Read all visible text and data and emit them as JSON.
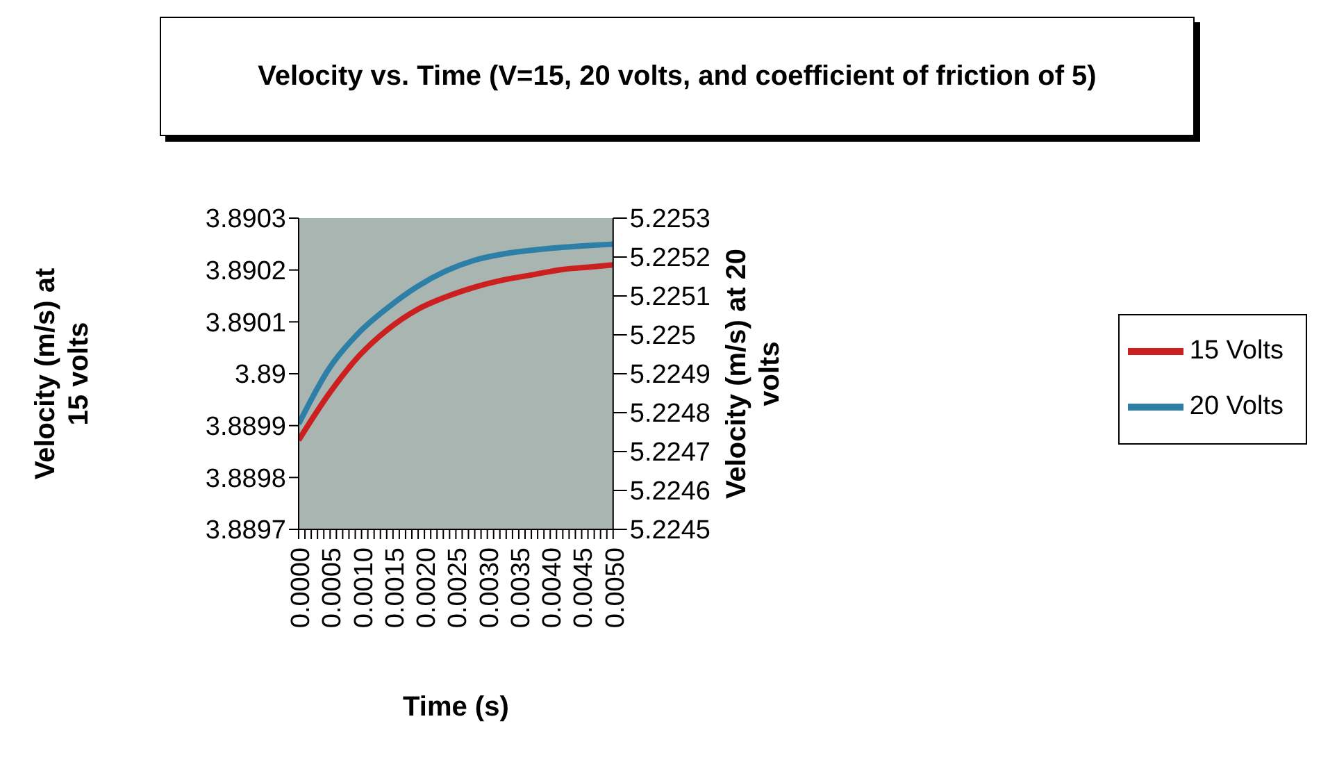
{
  "chart_data": {
    "type": "line",
    "title": "Velocity vs. Time (V=15, 20 volts, and coefficient of friction of 5)",
    "xlabel": "Time (s)",
    "ylabel": "Velocity (m/s)  at 15 volts",
    "y2label": "Velocity (m/s) at 20 volts",
    "x": [
      0,
      0.000486,
      0.000949,
      0.001412,
      0.001875,
      0.002338,
      0.0028,
      0.00326,
      0.00373,
      0.00419,
      0.00465,
      0.005
    ],
    "series": [
      {
        "name": "15 Volts",
        "color": "#cc1f1f",
        "values": [
          3.889872,
          3.889962,
          3.890033,
          3.890085,
          3.890123,
          3.890148,
          3.890167,
          3.890181,
          3.890191,
          3.890201,
          3.890206,
          3.89021
        ]
      },
      {
        "name": "20 Volts",
        "color": "#2e7fa8",
        "axis": "y2",
        "values": [
          5.224771,
          5.224914,
          5.225004,
          5.225069,
          5.225123,
          5.225164,
          5.225192,
          5.225208,
          5.225218,
          5.225225,
          5.22523,
          5.225233
        ]
      }
    ],
    "xlim": [
      0,
      0.005
    ],
    "xticks": [
      {
        "value": 0,
        "label": "0.0000"
      },
      {
        "value": 0.0001,
        "label": null
      },
      {
        "value": 0.0002,
        "label": null
      },
      {
        "value": 0.0003,
        "label": null
      },
      {
        "value": 0.0004,
        "label": null
      },
      {
        "value": 0.0005,
        "label": "0.0005"
      },
      {
        "value": 0.0006,
        "label": null
      },
      {
        "value": 0.0007,
        "label": null
      },
      {
        "value": 0.0008,
        "label": null
      },
      {
        "value": 0.0009,
        "label": null
      },
      {
        "value": 0.001,
        "label": "0.0010"
      },
      {
        "value": 0.0011,
        "label": null
      },
      {
        "value": 0.0012,
        "label": null
      },
      {
        "value": 0.0013,
        "label": null
      },
      {
        "value": 0.0014,
        "label": null
      },
      {
        "value": 0.0015,
        "label": "0.0015"
      },
      {
        "value": 0.0016,
        "label": null
      },
      {
        "value": 0.0017,
        "label": null
      },
      {
        "value": 0.0018,
        "label": null
      },
      {
        "value": 0.0019,
        "label": null
      },
      {
        "value": 0.002,
        "label": "0.0020"
      },
      {
        "value": 0.0021,
        "label": null
      },
      {
        "value": 0.0022,
        "label": null
      },
      {
        "value": 0.0023,
        "label": null
      },
      {
        "value": 0.0024,
        "label": null
      },
      {
        "value": 0.0025,
        "label": "0.0025"
      },
      {
        "value": 0.0026,
        "label": null
      },
      {
        "value": 0.0027,
        "label": null
      },
      {
        "value": 0.0028,
        "label": null
      },
      {
        "value": 0.0029,
        "label": null
      },
      {
        "value": 0.003,
        "label": "0.0030"
      },
      {
        "value": 0.0031,
        "label": null
      },
      {
        "value": 0.0032,
        "label": null
      },
      {
        "value": 0.0033,
        "label": null
      },
      {
        "value": 0.0034,
        "label": null
      },
      {
        "value": 0.0035,
        "label": "0.0035"
      },
      {
        "value": 0.0036,
        "label": null
      },
      {
        "value": 0.0037,
        "label": null
      },
      {
        "value": 0.0038,
        "label": null
      },
      {
        "value": 0.0039,
        "label": null
      },
      {
        "value": 0.004,
        "label": "0.0040"
      },
      {
        "value": 0.0041,
        "label": null
      },
      {
        "value": 0.0042,
        "label": null
      },
      {
        "value": 0.0043,
        "label": null
      },
      {
        "value": 0.0044,
        "label": null
      },
      {
        "value": 0.0045,
        "label": "0.0045"
      },
      {
        "value": 0.0046,
        "label": null
      },
      {
        "value": 0.0047,
        "label": null
      },
      {
        "value": 0.0048,
        "label": null
      },
      {
        "value": 0.0049,
        "label": null
      },
      {
        "value": 0.005,
        "label": "0.0050"
      }
    ],
    "ylim": [
      3.8897,
      3.8903
    ],
    "yticks": [
      3.8897,
      3.8898,
      3.8899,
      3.89,
      3.8901,
      3.8902,
      3.8903
    ],
    "y2lim": [
      5.2245,
      5.2253
    ],
    "y2ticks": [
      5.2245,
      5.2246,
      5.2247,
      5.2248,
      5.2249,
      5.225,
      5.2251,
      5.2252,
      5.2253
    ],
    "grid": false,
    "legend": "right",
    "marker": "none",
    "line_style": "solid"
  }
}
